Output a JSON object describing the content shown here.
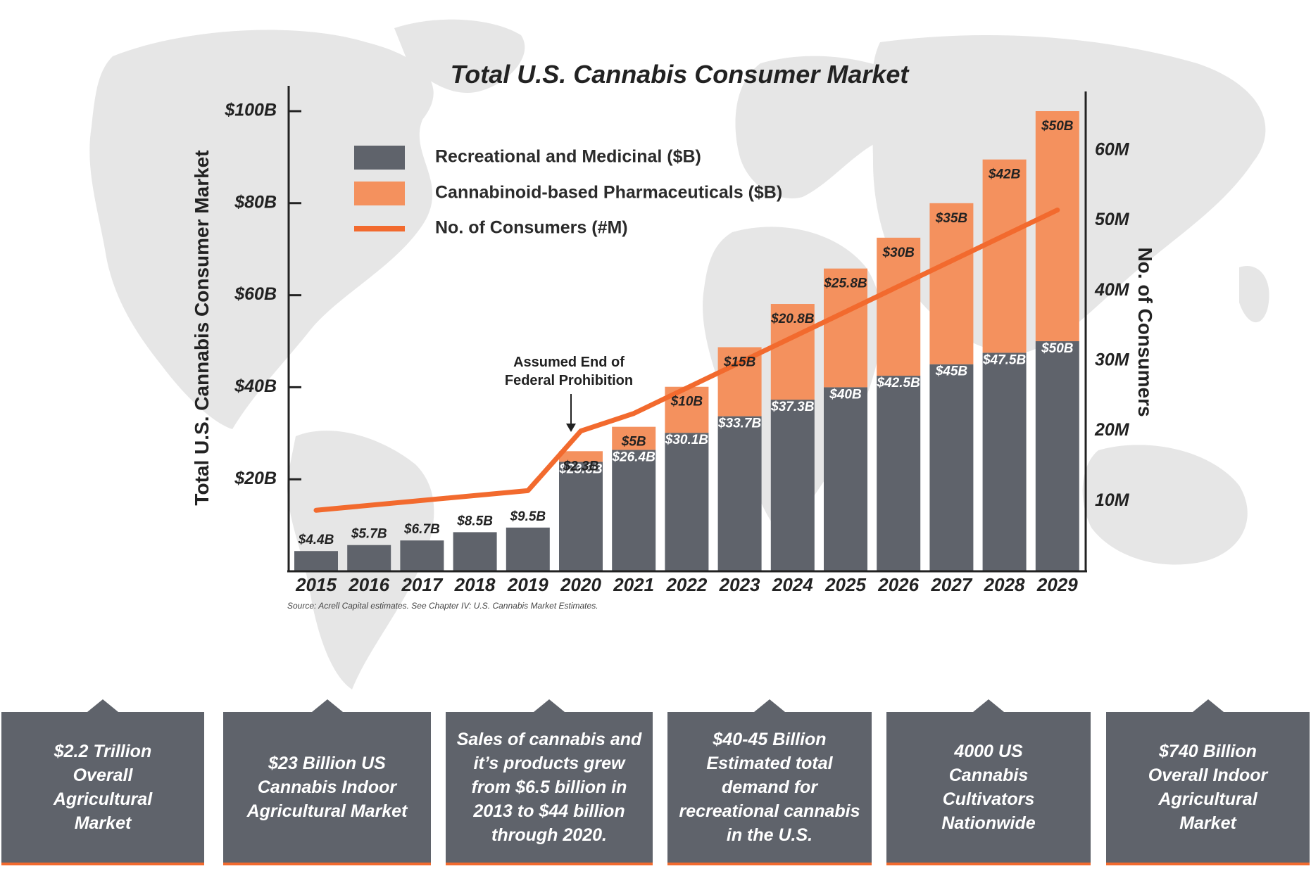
{
  "chart_data": {
    "type": "bar",
    "stacked": true,
    "title": "Total U.S. Cannabis Consumer Market",
    "categories": [
      "2015",
      "2016",
      "2017",
      "2018",
      "2019",
      "2020",
      "2021",
      "2022",
      "2023",
      "2024",
      "2025",
      "2026",
      "2027",
      "2028",
      "2029"
    ],
    "series": [
      {
        "name": "Recreational and Medicinal ($B)",
        "color": "#5f636b",
        "values": [
          4.4,
          5.7,
          6.7,
          8.5,
          9.5,
          23.8,
          26.4,
          30.1,
          33.7,
          37.3,
          40,
          42.5,
          45,
          47.5,
          50
        ],
        "labels": [
          "$4.4B",
          "$5.7B",
          "$6.7B",
          "$8.5B",
          "$9.5B",
          "$23.8B",
          "$26.4B",
          "$30.1B",
          "$33.7B",
          "$37.3B",
          "$40B",
          "$42.5B",
          "$45B",
          "$47.5B",
          "$50B"
        ]
      },
      {
        "name": "Cannabinoid-based Pharmaceuticals ($B)",
        "color": "#f4915e",
        "values": [
          0,
          0,
          0,
          0,
          0,
          2.3,
          5,
          10,
          15,
          20.8,
          25.8,
          30,
          35,
          42,
          50
        ],
        "labels": [
          "",
          "",
          "",
          "",
          "",
          "$2.3B",
          "$5B",
          "$10B",
          "$15B",
          "$20.8B",
          "$25.8B",
          "$30B",
          "$35B",
          "$42B",
          "$50B"
        ]
      }
    ],
    "line_series": {
      "name": "No. of Consumers (#M)",
      "color": "#f26a2e",
      "points": [
        [
          2015,
          8.7
        ],
        [
          2019,
          11.5
        ],
        [
          2020,
          20
        ],
        [
          2021,
          22.5
        ],
        [
          2029,
          51.5
        ]
      ]
    },
    "ylabel": "Total U.S. Cannabis Consumer Market",
    "ylim": [
      0,
      100
    ],
    "yticks": [
      "$20B",
      "$40B",
      "$60B",
      "$80B",
      "$100B"
    ],
    "ytick_values": [
      20,
      40,
      60,
      80,
      100
    ],
    "y2label": "No. of Consumers",
    "y2lim": [
      0,
      60
    ],
    "y2ticks": [
      "10M",
      "20M",
      "30M",
      "40M",
      "50M",
      "60M"
    ],
    "y2tick_values": [
      10,
      20,
      30,
      40,
      50,
      60
    ],
    "annotation": {
      "lines": [
        "Assumed End of",
        "Federal Prohibition"
      ],
      "category": "2020"
    },
    "source": "Source: Acrell Capital estimates. See Chapter IV: U.S. Cannabis Market Estimates.",
    "legend_position": "top-left"
  },
  "colors": {
    "gray": "#5f636b",
    "orange_light": "#f4915e",
    "orange": "#f26a2e",
    "map": "#e8e8e8"
  },
  "facts": [
    "$2.2 Trillion Overall Agricultural Market",
    "$23 Billion US Cannabis Indoor Agricultural Market",
    "Sales of cannabis and it’s products grew from $6.5 billion in 2013 to $44 billion through 2020.",
    "$40-45 Billion Estimated total demand for recreational cannabis in the U.S.",
    "4000 US Cannabis Cultivators Nationwide",
    "$740 Billion Overall Indoor Agricultural Market"
  ]
}
